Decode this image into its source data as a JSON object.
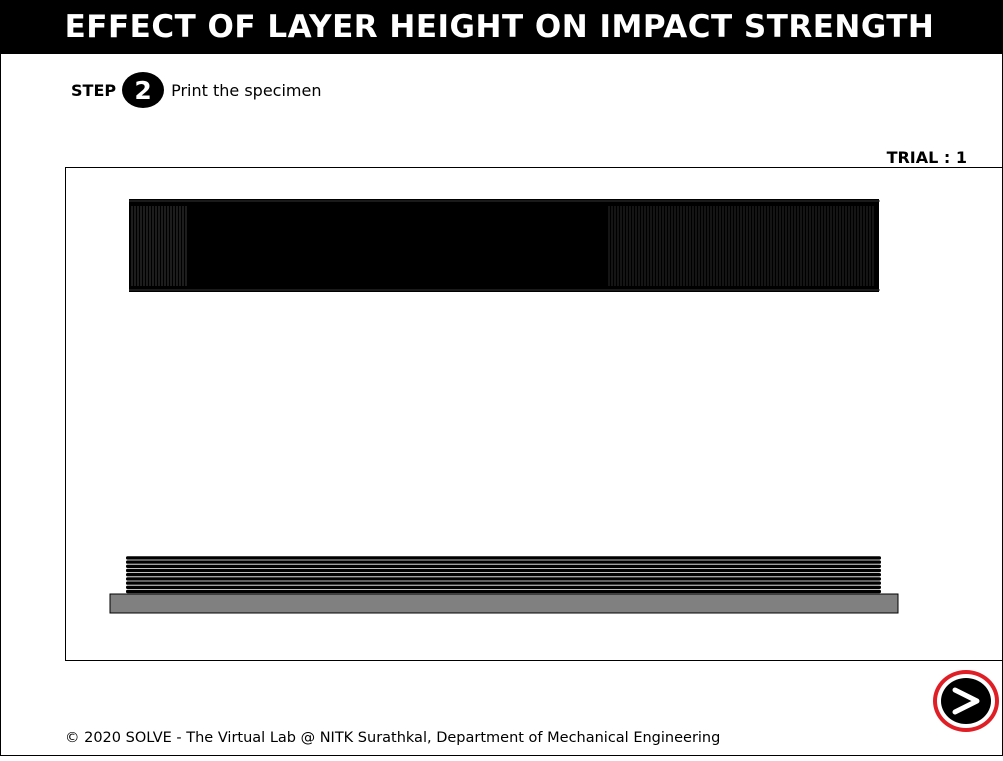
{
  "header": {
    "title": "EFFECT OF LAYER HEIGHT ON IMPACT STRENGTH"
  },
  "step": {
    "label": "STEP",
    "number": "2",
    "instruction": "Print the specimen"
  },
  "trial": {
    "label": "TRIAL : 1"
  },
  "printer": {
    "printed_layer_count": 9,
    "colors": {
      "specimen": "#000000",
      "build_plate": "#808080",
      "plate_border": "#000000"
    }
  },
  "footer": {
    "copyright": "© 2020 SOLVE - The Virtual Lab @ NITK Surathkal, Department of Mechanical Engineering"
  },
  "navigation": {
    "next_icon": "next-arrow-icon",
    "accent_color": "#e01e25"
  }
}
